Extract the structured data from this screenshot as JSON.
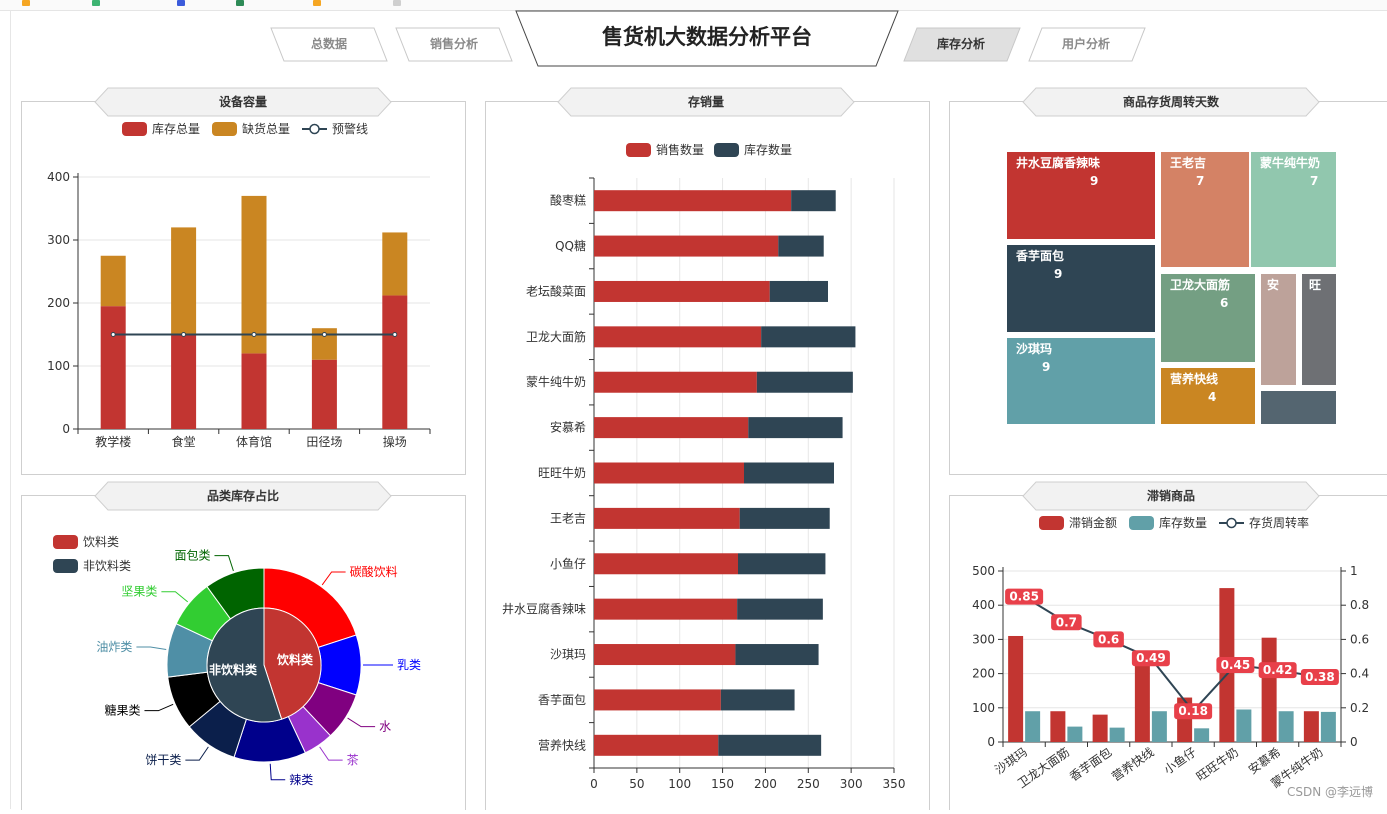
{
  "header": {
    "title": "售货机大数据分析平台",
    "tabs": [
      {
        "label": "总数据",
        "active": false
      },
      {
        "label": "销售分析",
        "active": false
      },
      {
        "label": "库存分析",
        "active": true
      },
      {
        "label": "用户分析",
        "active": false
      }
    ]
  },
  "panels": {
    "capacity": "设备容量",
    "stock_sales": "存销量",
    "turnover": "商品存货周转天数",
    "category": "品类库存占比",
    "slow": "滞销商品"
  },
  "watermark": "CSDN @李远博",
  "colors": {
    "red": "#c23531",
    "navy": "#2f4554",
    "orange": "#ca8622",
    "teal": "#61a0a8",
    "line": "#2f4554"
  },
  "chart_data": [
    {
      "id": "capacity",
      "type": "bar",
      "stacked": true,
      "categories": [
        "教学楼",
        "食堂",
        "体育馆",
        "田径场",
        "操场"
      ],
      "series": [
        {
          "name": "库存总量",
          "values": [
            195,
            150,
            120,
            110,
            212
          ],
          "color": "#c23531"
        },
        {
          "name": "缺货总量",
          "values": [
            80,
            170,
            250,
            50,
            100
          ],
          "color": "#ca8622"
        },
        {
          "name": "预警线",
          "type": "line",
          "values": [
            150,
            150,
            150,
            150,
            150
          ],
          "color": "#2f4554"
        }
      ],
      "yticks": [
        0,
        100,
        200,
        300,
        400
      ],
      "ylim": [
        0,
        400
      ]
    },
    {
      "id": "stock_sales",
      "type": "bar",
      "orientation": "horizontal",
      "stacked": true,
      "categories": [
        "酸枣糕",
        "QQ糖",
        "老坛酸菜面",
        "卫龙大面筋",
        "蒙牛纯牛奶",
        "安慕希",
        "旺旺牛奶",
        "王老吉",
        "小鱼仔",
        "井水豆腐香辣味",
        "沙琪玛",
        "香芋面包",
        "营养快线"
      ],
      "series": [
        {
          "name": "销售数量",
          "values": [
            230,
            215,
            205,
            195,
            190,
            180,
            175,
            170,
            168,
            167,
            165,
            148,
            145
          ],
          "color": "#c23531"
        },
        {
          "name": "库存数量",
          "values": [
            52,
            53,
            68,
            110,
            112,
            110,
            105,
            105,
            102,
            100,
            97,
            86,
            120
          ],
          "color": "#2f4554"
        }
      ],
      "xticks": [
        0,
        50,
        100,
        150,
        200,
        250,
        300,
        350
      ],
      "xlim": [
        0,
        350
      ]
    },
    {
      "id": "turnover",
      "type": "treemap",
      "items": [
        {
          "name": "井水豆腐香辣味",
          "value": 9,
          "color": "#c23531"
        },
        {
          "name": "香芋面包",
          "value": 9,
          "color": "#2f4554"
        },
        {
          "name": "沙琪玛",
          "value": 9,
          "color": "#61a0a8"
        },
        {
          "name": "王老吉",
          "value": 7,
          "color": "#d48265"
        },
        {
          "name": "蒙牛纯牛奶",
          "value": 7,
          "color": "#91c7ae"
        },
        {
          "name": "卫龙大面筋",
          "value": 6,
          "color": "#749f83"
        },
        {
          "name": "营养快线",
          "value": 4,
          "color": "#ca8622"
        },
        {
          "name": "安",
          "value": "",
          "color": "#bda29a"
        },
        {
          "name": "旺",
          "value": "",
          "color": "#6e7074"
        },
        {
          "name": "",
          "value": "",
          "color": "#546570"
        }
      ]
    },
    {
      "id": "category",
      "type": "pie",
      "legend": [
        "饮料类",
        "非饮料类"
      ],
      "inner": [
        {
          "name": "饮料类",
          "value": 45,
          "color": "#c23531"
        },
        {
          "name": "非饮料类",
          "value": 55,
          "color": "#2f4554"
        }
      ],
      "outer": [
        {
          "name": "碳酸饮料",
          "value": 20,
          "color": "#ff0000"
        },
        {
          "name": "乳类",
          "value": 10,
          "color": "#0000ff"
        },
        {
          "name": "水",
          "value": 8,
          "color": "#800080"
        },
        {
          "name": "茶",
          "value": 5,
          "color": "#9932cc"
        },
        {
          "name": "辣类",
          "value": 12,
          "color": "#00008b"
        },
        {
          "name": "饼干类",
          "value": 9,
          "color": "#0b1f4b"
        },
        {
          "name": "糖果类",
          "value": 9,
          "color": "#000000"
        },
        {
          "name": "油炸类",
          "value": 9,
          "color": "#4f8fa6"
        },
        {
          "name": "坚果类",
          "value": 8,
          "color": "#32cd32"
        },
        {
          "name": "面包类",
          "value": 10,
          "color": "#006400"
        }
      ]
    },
    {
      "id": "slow",
      "type": "bar",
      "categories": [
        "沙琪玛",
        "卫龙大面筋",
        "香芋面包",
        "营养快线",
        "小鱼仔",
        "旺旺牛奶",
        "安慕希",
        "蒙牛纯牛奶"
      ],
      "series": [
        {
          "name": "滞销金额",
          "values": [
            310,
            90,
            80,
            255,
            130,
            450,
            305,
            90
          ],
          "color": "#c23531"
        },
        {
          "name": "库存数量",
          "values": [
            90,
            45,
            42,
            90,
            40,
            95,
            90,
            88
          ],
          "color": "#61a0a8"
        },
        {
          "name": "存货周转率",
          "type": "line",
          "axis": "right",
          "values": [
            0.85,
            0.7,
            0.6,
            0.49,
            0.18,
            0.45,
            0.42,
            0.38
          ],
          "color": "#2f4554"
        }
      ],
      "yticks": [
        0,
        100,
        200,
        300,
        400,
        500
      ],
      "ylim": [
        0,
        500
      ],
      "y2ticks": [
        0,
        0.2,
        0.4,
        0.6,
        0.8,
        1
      ],
      "y2lim": [
        0,
        1
      ]
    }
  ]
}
